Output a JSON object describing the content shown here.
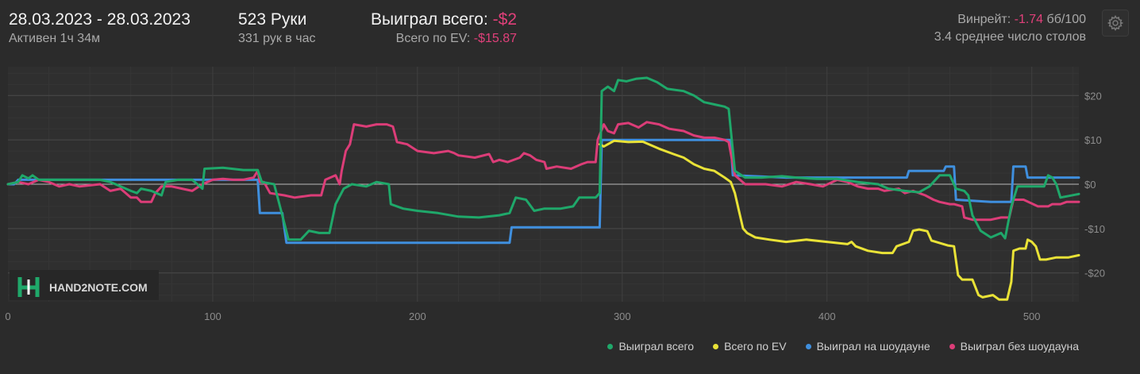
{
  "header": {
    "date_range": "28.03.2023 - 28.03.2023",
    "active": "Активен 1ч 34м",
    "hands": "523 Руки",
    "hands_per_hour": "331 рук в час",
    "won_total_label": "Выиграл всего:",
    "won_total_value": "-$2",
    "ev_label": "Всего по EV:",
    "ev_value": "-$15.87",
    "winrate_label": "Винрейт:",
    "winrate_value": "-1.74",
    "winrate_unit": "бб/100",
    "avg_tables": "3.4 среднее число столов"
  },
  "watermark": "HAND2NOTE.COM",
  "colors": {
    "won_total": "#1fa86a",
    "ev": "#e9e237",
    "showdown": "#3f8fde",
    "non_showdown": "#dc3d78",
    "negative_text": "#e0407a"
  },
  "chart_data": {
    "type": "line",
    "x_ticks": [
      "0",
      "100",
      "200",
      "300",
      "400",
      "500"
    ],
    "y_ticks": [
      "$20",
      "$10",
      "$0",
      "-$10",
      "-$20"
    ],
    "xlim": [
      0,
      523
    ],
    "ylim": [
      -26.5,
      26.5
    ],
    "grid": true,
    "legend_position": "bottom-right",
    "series": [
      {
        "name": "Выиграл всего",
        "color": "#1fa86a",
        "points": [
          [
            0,
            0
          ],
          [
            5,
            0.5
          ],
          [
            7,
            2
          ],
          [
            10,
            1.3
          ],
          [
            12,
            2
          ],
          [
            15,
            1
          ],
          [
            30,
            1
          ],
          [
            45,
            1
          ],
          [
            50,
            0.5
          ],
          [
            55,
            -0.5
          ],
          [
            60,
            -1.5
          ],
          [
            63,
            -2
          ],
          [
            65,
            -1
          ],
          [
            70,
            -1.5
          ],
          [
            75,
            -2.5
          ],
          [
            77,
            0.5
          ],
          [
            83,
            1
          ],
          [
            90,
            1
          ],
          [
            95,
            -1
          ],
          [
            96,
            3.5
          ],
          [
            105,
            3.7
          ],
          [
            115,
            3.2
          ],
          [
            122,
            3.2
          ],
          [
            124,
            0.5
          ],
          [
            130,
            0
          ],
          [
            134,
            -7
          ],
          [
            137,
            -12.5
          ],
          [
            143,
            -12.5
          ],
          [
            147,
            -10.5
          ],
          [
            152,
            -11
          ],
          [
            157,
            -11
          ],
          [
            160,
            -4.5
          ],
          [
            164,
            -1
          ],
          [
            168,
            0
          ],
          [
            175,
            -0.5
          ],
          [
            180,
            0.5
          ],
          [
            186,
            0
          ],
          [
            187,
            -4.5
          ],
          [
            193,
            -5.5
          ],
          [
            200,
            -6
          ],
          [
            210,
            -6.5
          ],
          [
            220,
            -7.3
          ],
          [
            230,
            -7.5
          ],
          [
            240,
            -7
          ],
          [
            245,
            -6.5
          ],
          [
            248,
            -3
          ],
          [
            253,
            -3.5
          ],
          [
            257,
            -6
          ],
          [
            262,
            -5.5
          ],
          [
            270,
            -5.5
          ],
          [
            276,
            -5
          ],
          [
            279,
            -3
          ],
          [
            284,
            -3
          ],
          [
            287,
            -3
          ],
          [
            289,
            -2
          ],
          [
            290,
            21
          ],
          [
            293,
            22
          ],
          [
            296,
            21
          ],
          [
            298,
            23.5
          ],
          [
            302,
            23.2
          ],
          [
            307,
            23.8
          ],
          [
            312,
            24
          ],
          [
            317,
            23
          ],
          [
            322,
            21.5
          ],
          [
            330,
            21
          ],
          [
            335,
            20
          ],
          [
            340,
            18.5
          ],
          [
            345,
            18
          ],
          [
            350,
            17.5
          ],
          [
            352,
            17
          ],
          [
            355,
            3
          ],
          [
            360,
            1.5
          ],
          [
            368,
            1.5
          ],
          [
            378,
            1.8
          ],
          [
            385,
            1.5
          ],
          [
            395,
            1.2
          ],
          [
            405,
            1.2
          ],
          [
            415,
            0.5
          ],
          [
            425,
            0
          ],
          [
            430,
            -1
          ],
          [
            438,
            -1.5
          ],
          [
            445,
            -1.8
          ],
          [
            450,
            -0.5
          ],
          [
            455,
            2
          ],
          [
            460,
            2
          ],
          [
            463,
            -1
          ],
          [
            467,
            -1.5
          ],
          [
            469,
            -2.5
          ],
          [
            471,
            -7
          ],
          [
            475,
            -10.5
          ],
          [
            480,
            -12
          ],
          [
            485,
            -11
          ],
          [
            487,
            -12.2
          ],
          [
            490,
            -5
          ],
          [
            493,
            -0.5
          ],
          [
            500,
            -0.5
          ],
          [
            506,
            -0.5
          ],
          [
            508,
            2
          ],
          [
            510,
            1.5
          ],
          [
            512,
            0
          ],
          [
            514,
            -3
          ],
          [
            523,
            -2.2
          ]
        ]
      },
      {
        "name": "Всего по EV",
        "color": "#e9e237",
        "points": [
          [
            289,
            9
          ],
          [
            291,
            8.5
          ],
          [
            296,
            9.8
          ],
          [
            303,
            9.5
          ],
          [
            310,
            9.6
          ],
          [
            318,
            8
          ],
          [
            325,
            6.8
          ],
          [
            330,
            6
          ],
          [
            335,
            4.5
          ],
          [
            340,
            3.5
          ],
          [
            345,
            3
          ],
          [
            350,
            1.5
          ],
          [
            353,
            0.5
          ],
          [
            355,
            -2
          ],
          [
            357,
            -6
          ],
          [
            359,
            -10
          ],
          [
            361,
            -11
          ],
          [
            365,
            -12
          ],
          [
            372,
            -12.5
          ],
          [
            380,
            -13
          ],
          [
            390,
            -12.5
          ],
          [
            400,
            -13
          ],
          [
            410,
            -13.5
          ],
          [
            412,
            -13
          ],
          [
            414,
            -14
          ],
          [
            420,
            -15
          ],
          [
            427,
            -15.5
          ],
          [
            432,
            -15.5
          ],
          [
            434,
            -14
          ],
          [
            440,
            -13
          ],
          [
            442,
            -10.5
          ],
          [
            445,
            -10.2
          ],
          [
            449,
            -10.6
          ],
          [
            451,
            -12.7
          ],
          [
            459,
            -13.8
          ],
          [
            462,
            -14
          ],
          [
            464,
            -20.5
          ],
          [
            466,
            -21.5
          ],
          [
            471,
            -21.5
          ],
          [
            474,
            -25
          ],
          [
            476,
            -25.5
          ],
          [
            481,
            -25
          ],
          [
            484,
            -26
          ],
          [
            488,
            -26
          ],
          [
            490,
            -22
          ],
          [
            491,
            -15
          ],
          [
            494,
            -14.5
          ],
          [
            497,
            -14.5
          ],
          [
            498,
            -12.5
          ],
          [
            500,
            -13
          ],
          [
            502,
            -14
          ],
          [
            504,
            -17
          ],
          [
            507,
            -17
          ],
          [
            512,
            -16.5
          ],
          [
            515,
            -16.5
          ],
          [
            518,
            -16.5
          ],
          [
            523,
            -16
          ]
        ]
      },
      {
        "name": "Выиграл на шоудауне",
        "color": "#3f8fde",
        "points": [
          [
            0,
            0
          ],
          [
            3,
            0
          ],
          [
            5,
            1
          ],
          [
            30,
            1
          ],
          [
            60,
            1
          ],
          [
            90,
            1
          ],
          [
            95,
            1
          ],
          [
            96,
            1
          ],
          [
            120,
            1
          ],
          [
            122,
            1
          ],
          [
            123,
            -6.5
          ],
          [
            134,
            -6.5
          ],
          [
            136,
            -13.2
          ],
          [
            160,
            -13.2
          ],
          [
            200,
            -13.2
          ],
          [
            240,
            -13.2
          ],
          [
            245,
            -13.2
          ],
          [
            246,
            -9.7
          ],
          [
            265,
            -9.7
          ],
          [
            288,
            -9.7
          ],
          [
            289,
            -9.7
          ],
          [
            290,
            10
          ],
          [
            300,
            10
          ],
          [
            320,
            10
          ],
          [
            340,
            10
          ],
          [
            353,
            10
          ],
          [
            354,
            2
          ],
          [
            380,
            1.5
          ],
          [
            410,
            1.5
          ],
          [
            439,
            1.5
          ],
          [
            440,
            3
          ],
          [
            457,
            3
          ],
          [
            458,
            4
          ],
          [
            462,
            4
          ],
          [
            463,
            -3.5
          ],
          [
            480,
            -4
          ],
          [
            490,
            -4
          ],
          [
            491,
            4
          ],
          [
            497,
            4
          ],
          [
            498,
            1.5
          ],
          [
            510,
            1.5
          ],
          [
            523,
            1.5
          ]
        ]
      },
      {
        "name": "Выиграл без шоудауна",
        "color": "#dc3d78",
        "points": [
          [
            0,
            0
          ],
          [
            5,
            0.5
          ],
          [
            10,
            0
          ],
          [
            15,
            1
          ],
          [
            20,
            0.5
          ],
          [
            25,
            -0.5
          ],
          [
            30,
            0
          ],
          [
            35,
            -0.5
          ],
          [
            45,
            0
          ],
          [
            50,
            -1.5
          ],
          [
            55,
            -1
          ],
          [
            60,
            -3
          ],
          [
            63,
            -3
          ],
          [
            65,
            -4
          ],
          [
            70,
            -4
          ],
          [
            72,
            -2
          ],
          [
            75,
            -0.5
          ],
          [
            80,
            -0.5
          ],
          [
            85,
            -1
          ],
          [
            90,
            -1.5
          ],
          [
            95,
            0
          ],
          [
            100,
            1
          ],
          [
            105,
            1.2
          ],
          [
            110,
            1
          ],
          [
            115,
            1
          ],
          [
            120,
            1.5
          ],
          [
            122,
            3
          ],
          [
            123,
            0.5
          ],
          [
            125,
            0.5
          ],
          [
            128,
            -2
          ],
          [
            135,
            -2.5
          ],
          [
            140,
            -3
          ],
          [
            148,
            -2.5
          ],
          [
            153,
            -2.5
          ],
          [
            155,
            1
          ],
          [
            160,
            2
          ],
          [
            162,
            0
          ],
          [
            163,
            3
          ],
          [
            165,
            7.5
          ],
          [
            167,
            9
          ],
          [
            169,
            13.5
          ],
          [
            175,
            13
          ],
          [
            180,
            13.5
          ],
          [
            185,
            13.5
          ],
          [
            188,
            13
          ],
          [
            190,
            9.5
          ],
          [
            195,
            9
          ],
          [
            200,
            7.5
          ],
          [
            208,
            7
          ],
          [
            215,
            7.5
          ],
          [
            218,
            7
          ],
          [
            220,
            6.5
          ],
          [
            228,
            6
          ],
          [
            235,
            6.8
          ],
          [
            237,
            5
          ],
          [
            240,
            5.5
          ],
          [
            244,
            5
          ],
          [
            250,
            6
          ],
          [
            252,
            7
          ],
          [
            255,
            6.5
          ],
          [
            258,
            5.5
          ],
          [
            262,
            5
          ],
          [
            263,
            3.5
          ],
          [
            268,
            4
          ],
          [
            275,
            3.5
          ],
          [
            280,
            4.5
          ],
          [
            283,
            5
          ],
          [
            287,
            5
          ],
          [
            288,
            10
          ],
          [
            291,
            13.5
          ],
          [
            293,
            12
          ],
          [
            296,
            11.5
          ],
          [
            298,
            13.5
          ],
          [
            303,
            13.8
          ],
          [
            308,
            12.8
          ],
          [
            312,
            14
          ],
          [
            318,
            13.5
          ],
          [
            323,
            12.5
          ],
          [
            330,
            12
          ],
          [
            335,
            11
          ],
          [
            340,
            10.5
          ],
          [
            345,
            10.5
          ],
          [
            350,
            10
          ],
          [
            352,
            9.5
          ],
          [
            355,
            2
          ],
          [
            360,
            0
          ],
          [
            370,
            0
          ],
          [
            378,
            -0.5
          ],
          [
            385,
            0.5
          ],
          [
            392,
            0
          ],
          [
            398,
            -0.5
          ],
          [
            405,
            1
          ],
          [
            410,
            0.5
          ],
          [
            415,
            -0.5
          ],
          [
            420,
            -1
          ],
          [
            425,
            -1
          ],
          [
            428,
            -1.5
          ],
          [
            435,
            -1
          ],
          [
            438,
            -2
          ],
          [
            442,
            -1.5
          ],
          [
            448,
            -2.5
          ],
          [
            452,
            -3.5
          ],
          [
            455,
            -4
          ],
          [
            460,
            -4.5
          ],
          [
            462,
            -4.5
          ],
          [
            466,
            -5
          ],
          [
            467,
            -7.5
          ],
          [
            471,
            -8
          ],
          [
            480,
            -8
          ],
          [
            485,
            -7.5
          ],
          [
            489,
            -7.5
          ],
          [
            491,
            -3.5
          ],
          [
            496,
            -3.5
          ],
          [
            503,
            -5
          ],
          [
            508,
            -5
          ],
          [
            510,
            -4.5
          ],
          [
            514,
            -4.5
          ],
          [
            517,
            -4
          ],
          [
            523,
            -4
          ]
        ]
      }
    ]
  }
}
